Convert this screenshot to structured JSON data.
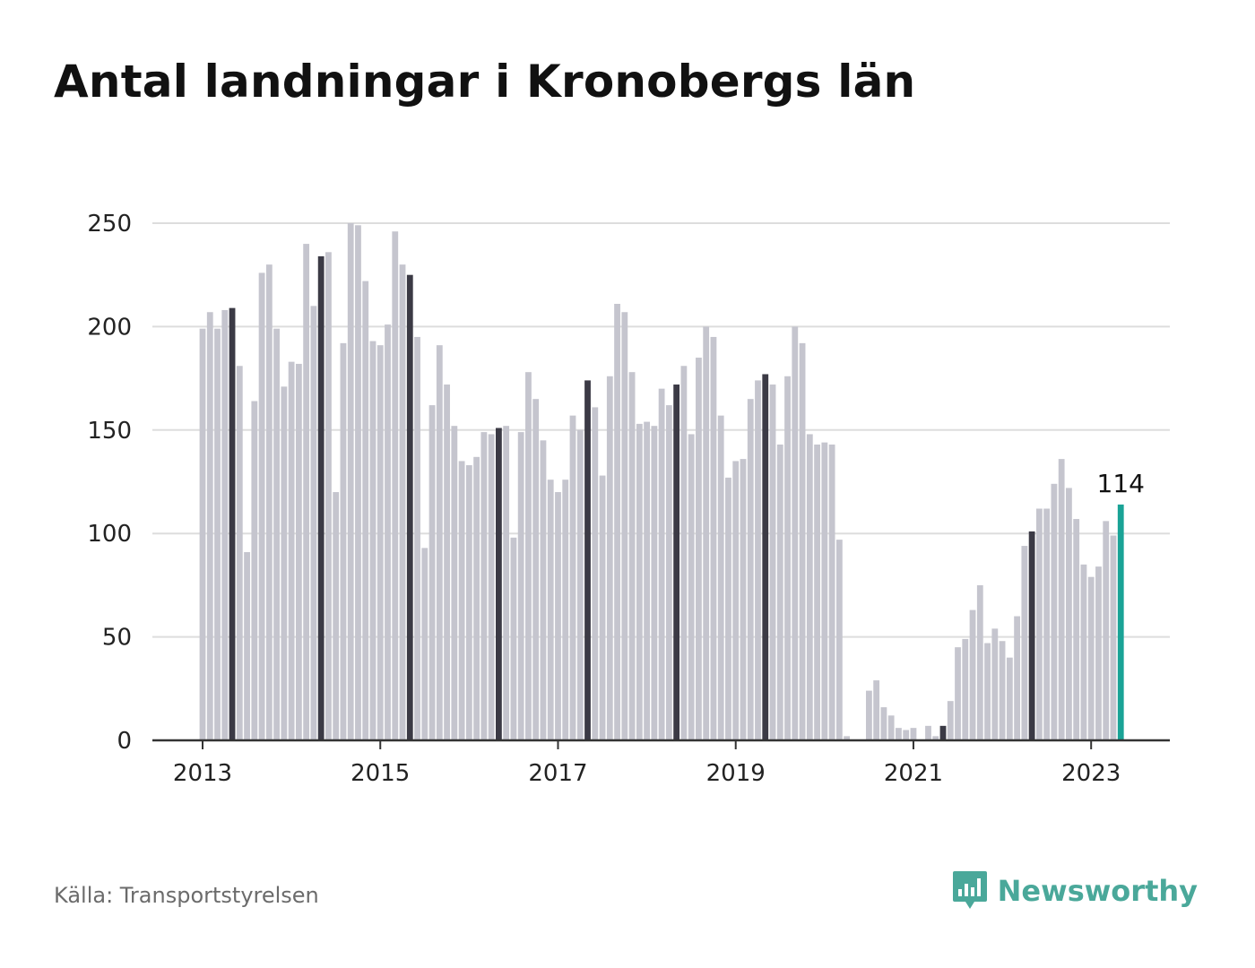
{
  "colors": {
    "bar": "#c5c5ce",
    "bar_highlight": "#3b3a45",
    "bar_latest": "#1aa396",
    "grid": "#dddddd",
    "axis": "#333333",
    "brand": "#4aa89a"
  },
  "header": {
    "title": "Antal landningar i Kronobergs län"
  },
  "footer": {
    "source": "Källa: Transportstyrelsen",
    "brand_name": "Newsworthy",
    "brand_icon": "bar-chart-speech-bubble-icon"
  },
  "chart_data": {
    "type": "bar",
    "title": "Antal landningar i Kronobergs län",
    "xlabel": "",
    "ylabel": "",
    "ylim": [
      0,
      250
    ],
    "yticks": [
      "0",
      "50",
      "100",
      "150",
      "200",
      "250"
    ],
    "xticks": [
      "2013",
      "2015",
      "2017",
      "2019",
      "2021",
      "2023"
    ],
    "grid": true,
    "start_month": "2013-01",
    "end_month": "2023-05",
    "highlight_months": [
      "2013-05",
      "2014-05",
      "2015-05",
      "2016-05",
      "2017-05",
      "2018-05",
      "2019-05",
      "2020-05",
      "2021-05",
      "2022-05"
    ],
    "latest_month": "2023-05",
    "latest_label": "114",
    "values": [
      199,
      207,
      199,
      208,
      209,
      181,
      91,
      164,
      226,
      230,
      199,
      171,
      183,
      182,
      240,
      210,
      234,
      236,
      120,
      192,
      250,
      249,
      222,
      193,
      191,
      201,
      246,
      230,
      225,
      195,
      93,
      162,
      191,
      172,
      152,
      135,
      133,
      137,
      149,
      148,
      151,
      152,
      98,
      149,
      178,
      165,
      145,
      126,
      120,
      126,
      157,
      150,
      174,
      161,
      128,
      176,
      211,
      207,
      178,
      153,
      154,
      152,
      170,
      162,
      172,
      181,
      148,
      185,
      200,
      195,
      157,
      127,
      135,
      136,
      165,
      174,
      177,
      172,
      143,
      176,
      200,
      192,
      148,
      143,
      144,
      143,
      97,
      2,
      0,
      0,
      24,
      29,
      16,
      12,
      6,
      5,
      6,
      0,
      7,
      2,
      7,
      19,
      45,
      49,
      63,
      75,
      47,
      54,
      48,
      40,
      60,
      94,
      101,
      112,
      112,
      124,
      136,
      122,
      107,
      85,
      79,
      84,
      106,
      99,
      114
    ]
  }
}
